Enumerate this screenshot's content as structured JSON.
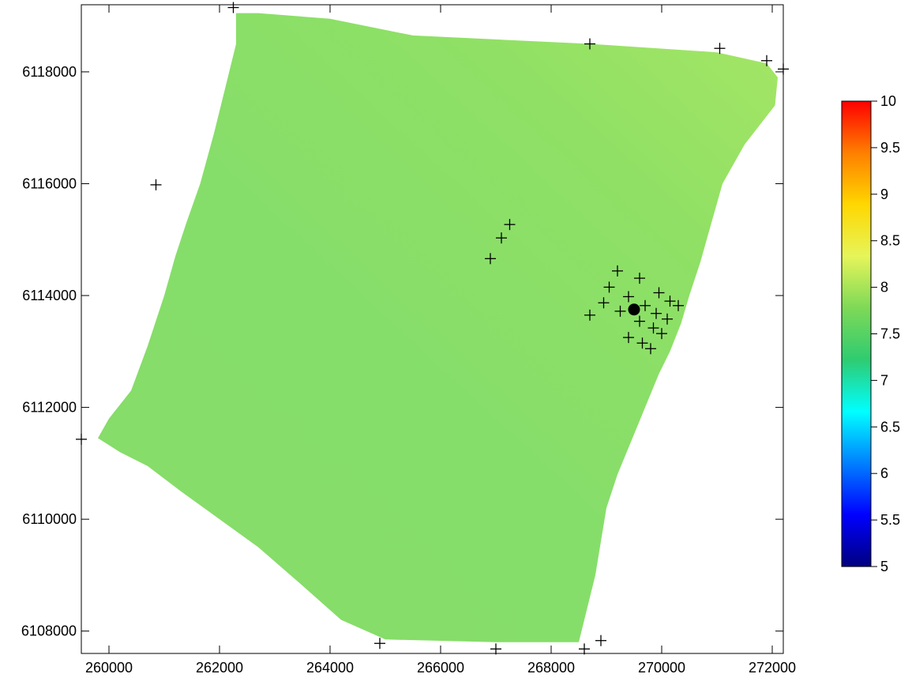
{
  "chart_data": {
    "type": "heatmap",
    "title": "",
    "xlabel": "",
    "ylabel": "",
    "xlim": [
      259500,
      272200
    ],
    "ylim": [
      6107600,
      6119200
    ],
    "x_ticks": [
      260000,
      262000,
      264000,
      266000,
      268000,
      270000,
      272000
    ],
    "x_tick_labels": [
      "260000",
      "262000",
      "264000",
      "266000",
      "268000",
      "270000",
      "272000"
    ],
    "y_ticks": [
      6108000,
      6110000,
      6112000,
      6114000,
      6116000,
      6118000
    ],
    "y_tick_labels": [
      "6108000",
      "6110000",
      "6112000",
      "6114000",
      "6116000",
      "6118000"
    ],
    "grid": false,
    "surface": {
      "description_value_range": [
        7.9,
        8.3
      ],
      "boundary": [
        [
          262300,
          6119050
        ],
        [
          262700,
          6119050
        ],
        [
          264000,
          6118950
        ],
        [
          265500,
          6118650
        ],
        [
          268700,
          6118500
        ],
        [
          271000,
          6118350
        ],
        [
          271900,
          6118150
        ],
        [
          272100,
          6117900
        ],
        [
          272050,
          6117400
        ],
        [
          271500,
          6116700
        ],
        [
          271100,
          6116000
        ],
        [
          270900,
          6115300
        ],
        [
          270700,
          6114600
        ],
        [
          270500,
          6114000
        ],
        [
          270350,
          6113500
        ],
        [
          270150,
          6113000
        ],
        [
          269950,
          6112600
        ],
        [
          269700,
          6112000
        ],
        [
          269450,
          6111400
        ],
        [
          269200,
          6110800
        ],
        [
          269000,
          6110200
        ],
        [
          268900,
          6109600
        ],
        [
          268800,
          6109000
        ],
        [
          268600,
          6108200
        ],
        [
          268500,
          6107800
        ],
        [
          267000,
          6107800
        ],
        [
          265000,
          6107850
        ],
        [
          264200,
          6108200
        ],
        [
          263400,
          6108900
        ],
        [
          262700,
          6109500
        ],
        [
          262000,
          6110000
        ],
        [
          261300,
          6110500
        ],
        [
          260700,
          6110950
        ],
        [
          260200,
          6111200
        ],
        [
          259800,
          6111450
        ],
        [
          260000,
          6111800
        ],
        [
          260400,
          6112300
        ],
        [
          260700,
          6113100
        ],
        [
          261000,
          6114000
        ],
        [
          261200,
          6114700
        ],
        [
          261400,
          6115300
        ],
        [
          261650,
          6116000
        ],
        [
          261900,
          6116900
        ],
        [
          262100,
          6117700
        ],
        [
          262300,
          6118500
        ]
      ]
    },
    "stations": [
      {
        "x": 262250,
        "y": 6119150
      },
      {
        "x": 268700,
        "y": 6118500
      },
      {
        "x": 271050,
        "y": 6118420
      },
      {
        "x": 271900,
        "y": 6118200
      },
      {
        "x": 272200,
        "y": 6118050
      },
      {
        "x": 260850,
        "y": 6115980
      },
      {
        "x": 267250,
        "y": 6115270
      },
      {
        "x": 267100,
        "y": 6115030
      },
      {
        "x": 266900,
        "y": 6114660
      },
      {
        "x": 269200,
        "y": 6114440
      },
      {
        "x": 269600,
        "y": 6114310
      },
      {
        "x": 269050,
        "y": 6114150
      },
      {
        "x": 269950,
        "y": 6114050
      },
      {
        "x": 269400,
        "y": 6113980
      },
      {
        "x": 268950,
        "y": 6113870
      },
      {
        "x": 270150,
        "y": 6113900
      },
      {
        "x": 270300,
        "y": 6113820
      },
      {
        "x": 269700,
        "y": 6113820
      },
      {
        "x": 269250,
        "y": 6113720
      },
      {
        "x": 269900,
        "y": 6113680
      },
      {
        "x": 268700,
        "y": 6113650
      },
      {
        "x": 270100,
        "y": 6113580
      },
      {
        "x": 269600,
        "y": 6113540
      },
      {
        "x": 269850,
        "y": 6113420
      },
      {
        "x": 270000,
        "y": 6113320
      },
      {
        "x": 269400,
        "y": 6113250
      },
      {
        "x": 269650,
        "y": 6113150
      },
      {
        "x": 269800,
        "y": 6113050
      },
      {
        "x": 259500,
        "y": 6111430
      },
      {
        "x": 264900,
        "y": 6107780
      },
      {
        "x": 267000,
        "y": 6107680
      },
      {
        "x": 268600,
        "y": 6107680
      },
      {
        "x": 268900,
        "y": 6107830
      }
    ],
    "highlight_point": {
      "x": 269500,
      "y": 6113750
    },
    "colorbar": {
      "min": 5,
      "max": 10,
      "ticks": [
        5,
        5.5,
        6,
        6.5,
        7,
        7.5,
        8,
        8.5,
        9,
        9.5,
        10
      ],
      "tick_labels": [
        "5",
        "5.5",
        "6",
        "6.5",
        "7",
        "7.5",
        "8",
        "8.5",
        "9",
        "9.5",
        "10"
      ],
      "colors": [
        "#00007f",
        "#0000ff",
        "#0080ff",
        "#00ffff",
        "#2ecc71",
        "#7ed957",
        "#e6f55a",
        "#ffd700",
        "#ff7f00",
        "#ff0000"
      ]
    }
  }
}
